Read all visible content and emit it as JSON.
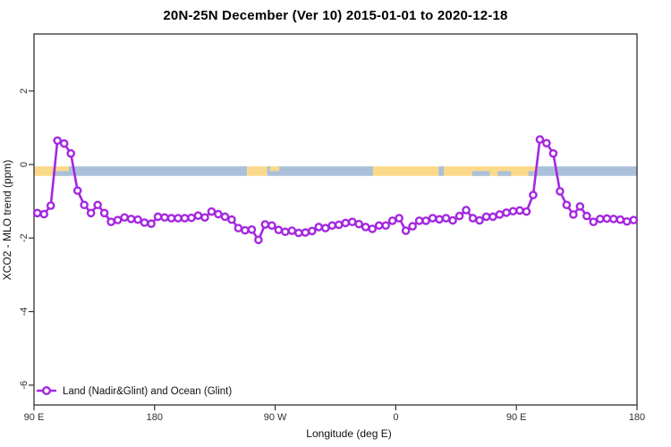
{
  "title": "20N-25N December (Ver 10)   2015-01-01 to 2020-12-18",
  "chart_data": {
    "type": "line",
    "title": "20N-25N December (Ver 10)   2015-01-01 to 2020-12-18",
    "xlabel": "Longitude (deg E)",
    "ylabel": "XCO2 - MLO trend (ppm)",
    "xlim": [
      90,
      540
    ],
    "ylim": [
      -6.54,
      3.55
    ],
    "grid": false,
    "x_ticks": [
      {
        "value": 90,
        "label": "90 E"
      },
      {
        "value": 180,
        "label": "180"
      },
      {
        "value": 270,
        "label": "90 W"
      },
      {
        "value": 360,
        "label": "0"
      },
      {
        "value": 450,
        "label": "90 E"
      },
      {
        "value": 540,
        "label": "180"
      }
    ],
    "y_ticks": [
      2,
      0,
      -2,
      -4,
      -6
    ],
    "colors": {
      "axis": "#333333",
      "series_purple": "#A428E0",
      "land": "#FBD98A",
      "ocean": "#AAC0DA"
    },
    "legend": {
      "position": "bottom-left",
      "label": "Land (Nadir&Glint) and Ocean (Glint)"
    },
    "map_band": {
      "comment": "land/ocean strip drawn behind data near y=0, 20N-25N latitude band",
      "value_top": -0.05,
      "value_bottom": -0.31,
      "land_color": "#FBD98A",
      "ocean_color": "#AAC0DA",
      "segments": [
        {
          "from": 90,
          "to": 116,
          "type": "land"
        },
        {
          "from": 116,
          "to": 249,
          "type": "ocean"
        },
        {
          "from": 104,
          "to": 116,
          "type": "ocean",
          "half": "bottom"
        },
        {
          "from": 249,
          "to": 264,
          "type": "land"
        },
        {
          "from": 264,
          "to": 343,
          "type": "ocean"
        },
        {
          "from": 266,
          "to": 273,
          "type": "land",
          "half": "top"
        },
        {
          "from": 343,
          "to": 392,
          "type": "land"
        },
        {
          "from": 392,
          "to": 396,
          "type": "ocean"
        },
        {
          "from": 396,
          "to": 466,
          "type": "land"
        },
        {
          "from": 417,
          "to": 430,
          "type": "ocean",
          "half": "bottom"
        },
        {
          "from": 436,
          "to": 446,
          "type": "ocean",
          "half": "bottom"
        },
        {
          "from": 459,
          "to": 466,
          "type": "ocean",
          "half": "bottom"
        },
        {
          "from": 466,
          "to": 540,
          "type": "ocean"
        }
      ]
    },
    "series": [
      {
        "name": "Land (Nadir&Glint) and Ocean (Glint)",
        "color": "#A428E0",
        "marker": "open-circle",
        "x": [
          92.5,
          97.5,
          102.5,
          107.5,
          112.5,
          117.5,
          122.5,
          127.5,
          132.5,
          137.5,
          142.5,
          147.5,
          152.5,
          157.5,
          162.5,
          167.5,
          172.5,
          177.5,
          182.5,
          187.5,
          192.5,
          197.5,
          202.5,
          207.5,
          212.5,
          217.5,
          222.5,
          227.5,
          232.5,
          237.5,
          242.5,
          247.5,
          252.5,
          257.5,
          262.5,
          267.5,
          272.5,
          277.5,
          282.5,
          287.5,
          292.5,
          297.5,
          302.5,
          307.5,
          312.5,
          317.5,
          322.5,
          327.5,
          332.5,
          337.5,
          342.5,
          347.5,
          352.5,
          357.5,
          362.5,
          367.5,
          372.5,
          377.5,
          382.5,
          387.5,
          392.5,
          397.5,
          402.5,
          407.5,
          412.5,
          417.5,
          422.5,
          427.5,
          432.5,
          437.5,
          442.5,
          447.5,
          452.5,
          457.5,
          462.5,
          467.5,
          472.5,
          477.5,
          482.5,
          487.5,
          492.5,
          497.5,
          502.5,
          507.5,
          512.5,
          517.5,
          522.5,
          527.5,
          532.5,
          537.5
        ],
        "y": [
          -1.32,
          -1.35,
          -1.12,
          0.65,
          0.57,
          0.3,
          -0.71,
          -1.1,
          -1.32,
          -1.1,
          -1.32,
          -1.56,
          -1.51,
          -1.44,
          -1.48,
          -1.5,
          -1.58,
          -1.61,
          -1.42,
          -1.44,
          -1.46,
          -1.46,
          -1.46,
          -1.45,
          -1.39,
          -1.44,
          -1.28,
          -1.35,
          -1.42,
          -1.5,
          -1.73,
          -1.79,
          -1.77,
          -2.05,
          -1.63,
          -1.66,
          -1.78,
          -1.83,
          -1.8,
          -1.86,
          -1.85,
          -1.81,
          -1.7,
          -1.73,
          -1.66,
          -1.64,
          -1.59,
          -1.56,
          -1.62,
          -1.7,
          -1.75,
          -1.66,
          -1.66,
          -1.53,
          -1.46,
          -1.8,
          -1.68,
          -1.53,
          -1.53,
          -1.46,
          -1.49,
          -1.46,
          -1.52,
          -1.4,
          -1.24,
          -1.46,
          -1.52,
          -1.42,
          -1.42,
          -1.36,
          -1.31,
          -1.27,
          -1.25,
          -1.28,
          -0.83,
          0.68,
          0.58,
          0.3,
          -0.73,
          -1.1,
          -1.36,
          -1.14,
          -1.4,
          -1.56,
          -1.48,
          -1.47,
          -1.48,
          -1.5,
          -1.55,
          -1.51
        ]
      }
    ]
  }
}
